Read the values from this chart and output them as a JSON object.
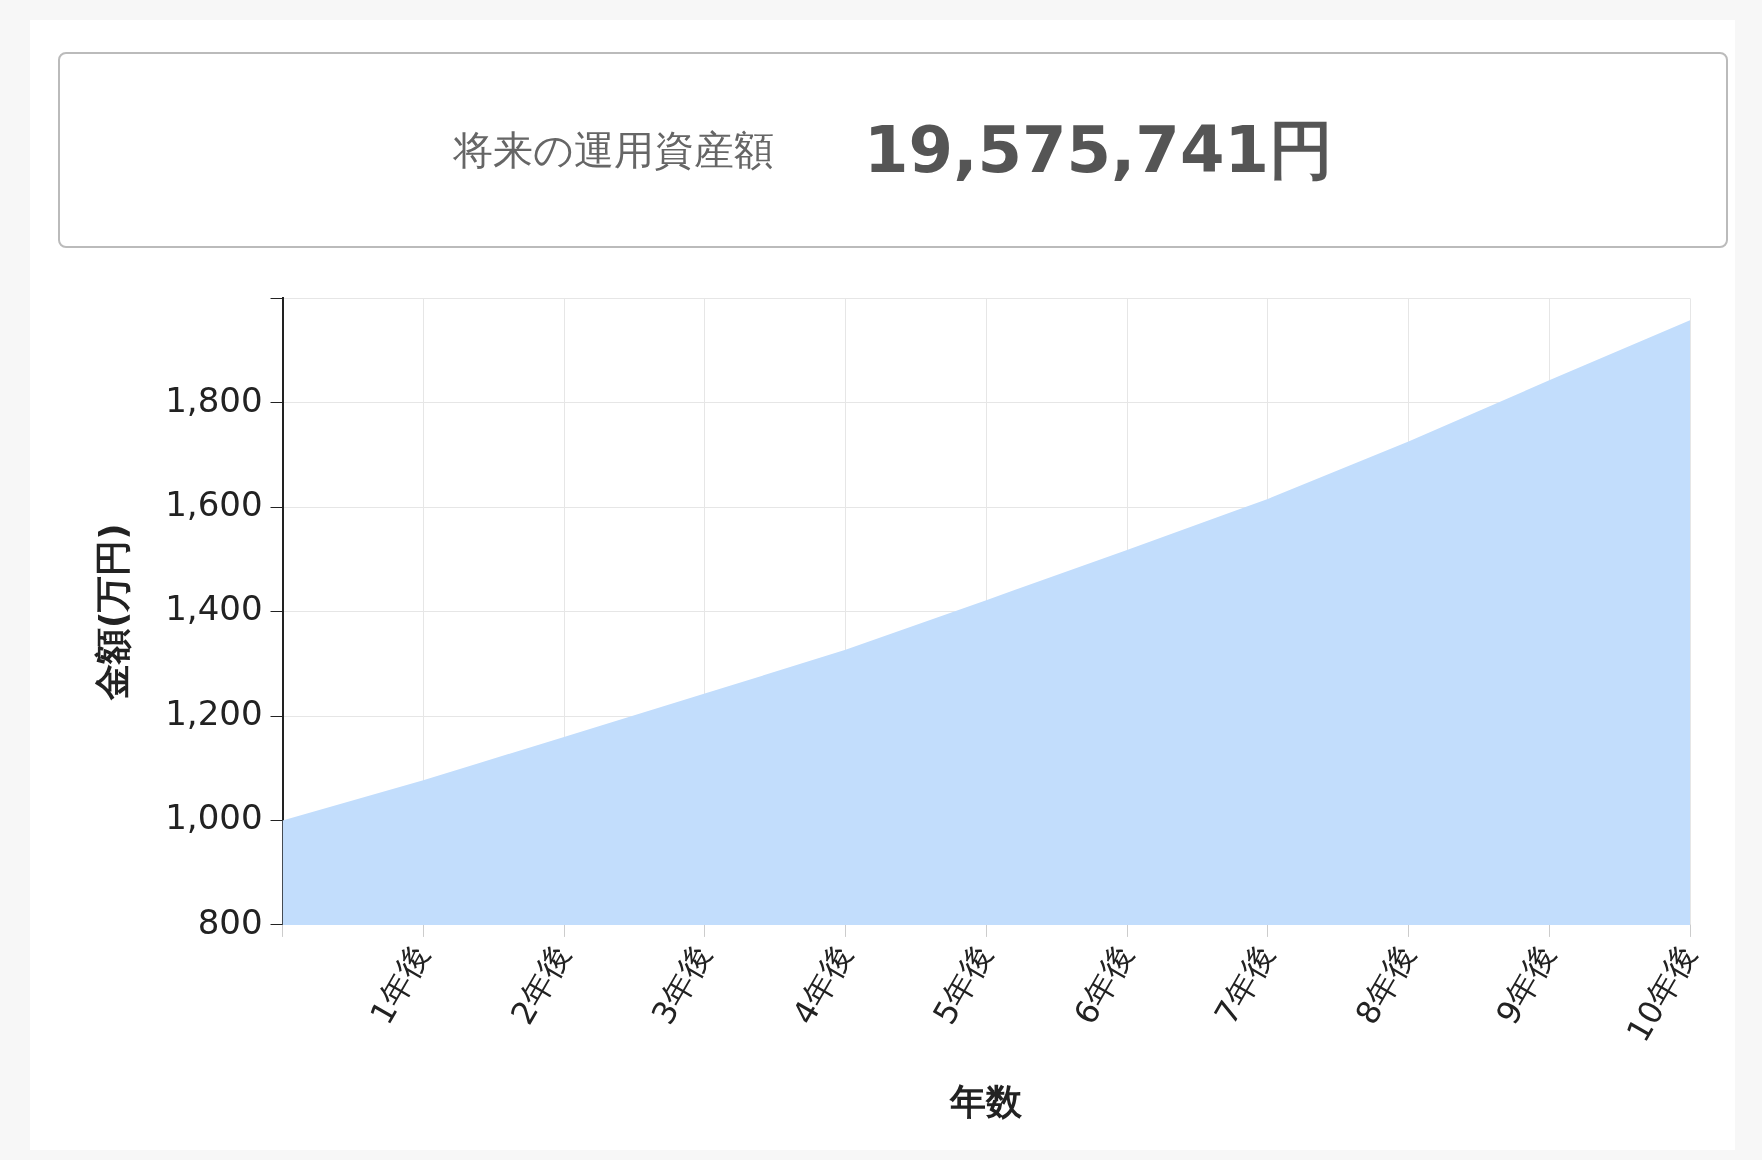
{
  "chart_data": {
    "type": "area",
    "title": "将来の運用資産額",
    "subtitle": "19,575,741円",
    "xlabel": "年数",
    "ylabel": "金額(万円)",
    "categories": [
      null,
      "1年後",
      "2年後",
      "3年後",
      "4年後",
      "5年後",
      "6年後",
      "7年後",
      "8年後",
      "9年後",
      "10年後"
    ],
    "series": [
      {
        "color": "#c2ddfc",
        "values": [
          1000,
          1077,
          1160,
          1243,
          1327,
          1422,
          1518,
          1616,
          1726,
          1843,
          1958
        ]
      }
    ],
    "ylim": [
      800,
      2000
    ],
    "yticks": [
      800,
      {
        "value": 1000,
        "label": "1,000"
      },
      {
        "value": 1200,
        "label": "1,200"
      },
      {
        "value": 1400,
        "label": "1,400"
      },
      {
        "value": 1600,
        "label": "1,600"
      },
      {
        "value": 1800,
        "label": "1,800"
      },
      {
        "value": 2000,
        "label": null
      }
    ],
    "grid": true,
    "legend": false
  }
}
